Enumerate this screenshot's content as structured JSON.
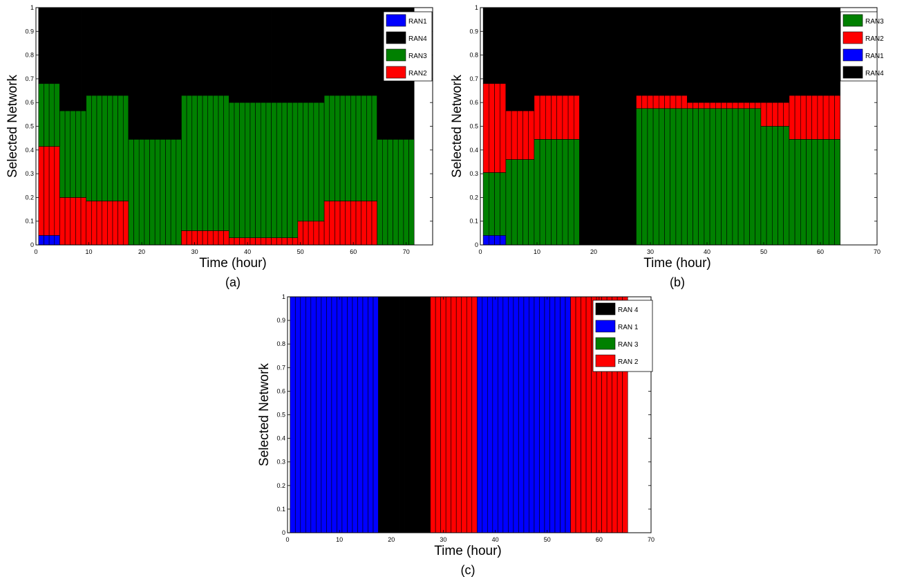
{
  "chart_data": [
    {
      "type": "bar",
      "stacked": true,
      "caption": "(a)",
      "xlabel": "Time (hour)",
      "ylabel": "Selected Network",
      "xlim": [
        0,
        75
      ],
      "ylim": [
        0,
        1
      ],
      "xticks": [
        0,
        10,
        20,
        30,
        40,
        50,
        60,
        70
      ],
      "xtick_labels": [
        "0",
        "10",
        "20",
        "30",
        "40",
        "50",
        "60",
        "70"
      ],
      "yticks": [
        0,
        0.1,
        0.2,
        0.3,
        0.4,
        0.5,
        0.6,
        0.7,
        0.8,
        0.9,
        1
      ],
      "ytick_labels": [
        "0",
        "0.1",
        "0.2",
        "0.3",
        "0.4",
        "0.5",
        "0.6",
        "0.7",
        "0.8",
        "0.9",
        "1"
      ],
      "bar_count": 71,
      "legend_position": "top-right",
      "legend": [
        "RAN1",
        "RAN4",
        "RAN3",
        "RAN2"
      ],
      "stack_order": [
        "RAN1",
        "RAN2",
        "RAN3",
        "RAN4"
      ],
      "colors": {
        "RAN1": "#0000ff",
        "RAN2": "#ff0000",
        "RAN3": "#008000",
        "RAN4": "#000000"
      },
      "segments": [
        {
          "x_start": 1,
          "x_end": 4,
          "values": {
            "RAN1": 0.04,
            "RAN2": 0.375,
            "RAN3": 0.265,
            "RAN4": 0.32
          }
        },
        {
          "x_start": 5,
          "x_end": 9,
          "values": {
            "RAN1": 0,
            "RAN2": 0.2,
            "RAN3": 0.365,
            "RAN4": 0.435
          }
        },
        {
          "x_start": 10,
          "x_end": 17,
          "values": {
            "RAN1": 0,
            "RAN2": 0.185,
            "RAN3": 0.445,
            "RAN4": 0.37
          }
        },
        {
          "x_start": 18,
          "x_end": 27,
          "values": {
            "RAN1": 0,
            "RAN2": 0,
            "RAN3": 0.445,
            "RAN4": 0.555
          }
        },
        {
          "x_start": 28,
          "x_end": 36,
          "values": {
            "RAN1": 0,
            "RAN2": 0.06,
            "RAN3": 0.57,
            "RAN4": 0.37
          }
        },
        {
          "x_start": 37,
          "x_end": 49,
          "values": {
            "RAN1": 0,
            "RAN2": 0.03,
            "RAN3": 0.57,
            "RAN4": 0.4
          }
        },
        {
          "x_start": 50,
          "x_end": 54,
          "values": {
            "RAN1": 0,
            "RAN2": 0.1,
            "RAN3": 0.5,
            "RAN4": 0.4
          }
        },
        {
          "x_start": 55,
          "x_end": 64,
          "values": {
            "RAN1": 0,
            "RAN2": 0.185,
            "RAN3": 0.445,
            "RAN4": 0.37
          }
        },
        {
          "x_start": 65,
          "x_end": 71,
          "values": {
            "RAN1": 0,
            "RAN2": 0,
            "RAN3": 0.445,
            "RAN4": 0.555
          }
        }
      ]
    },
    {
      "type": "bar",
      "stacked": true,
      "caption": "(b)",
      "xlabel": "Time (hour)",
      "ylabel": "Selected Network",
      "xlim": [
        0,
        70
      ],
      "ylim": [
        0,
        1
      ],
      "xticks": [
        0,
        10,
        20,
        30,
        40,
        50,
        60,
        70
      ],
      "xtick_labels": [
        "0",
        "10",
        "20",
        "30",
        "40",
        "50",
        "60",
        "70"
      ],
      "yticks": [
        0,
        0.1,
        0.2,
        0.3,
        0.4,
        0.5,
        0.6,
        0.7,
        0.8,
        0.9,
        1
      ],
      "ytick_labels": [
        "0",
        "0.1",
        "0.2",
        "0.3",
        "0.4",
        "0.5",
        "0.6",
        "0.7",
        "0.8",
        "0.9",
        "1"
      ],
      "bar_count": 63,
      "legend_position": "top-right",
      "legend": [
        "RAN3",
        "RAN2",
        "RAN1",
        "RAN4"
      ],
      "stack_order": [
        "RAN1",
        "RAN3",
        "RAN2",
        "RAN4"
      ],
      "colors": {
        "RAN1": "#0000ff",
        "RAN2": "#ff0000",
        "RAN3": "#008000",
        "RAN4": "#000000"
      },
      "segments": [
        {
          "x_start": 1,
          "x_end": 4,
          "values": {
            "RAN1": 0.04,
            "RAN3": 0.265,
            "RAN2": 0.375,
            "RAN4": 0.32
          }
        },
        {
          "x_start": 5,
          "x_end": 9,
          "values": {
            "RAN1": 0,
            "RAN3": 0.36,
            "RAN2": 0.205,
            "RAN4": 0.435
          }
        },
        {
          "x_start": 10,
          "x_end": 17,
          "values": {
            "RAN1": 0,
            "RAN3": 0.445,
            "RAN2": 0.185,
            "RAN4": 0.37
          }
        },
        {
          "x_start": 18,
          "x_end": 27,
          "values": {
            "RAN1": 0,
            "RAN3": 0,
            "RAN2": 0,
            "RAN4": 1
          }
        },
        {
          "x_start": 28,
          "x_end": 36,
          "values": {
            "RAN1": 0,
            "RAN3": 0.575,
            "RAN2": 0.055,
            "RAN4": 0.37
          }
        },
        {
          "x_start": 37,
          "x_end": 49,
          "values": {
            "RAN1": 0,
            "RAN3": 0.575,
            "RAN2": 0.025,
            "RAN4": 0.4
          }
        },
        {
          "x_start": 50,
          "x_end": 54,
          "values": {
            "RAN1": 0,
            "RAN3": 0.5,
            "RAN2": 0.1,
            "RAN4": 0.4
          }
        },
        {
          "x_start": 55,
          "x_end": 63,
          "values": {
            "RAN1": 0,
            "RAN3": 0.445,
            "RAN2": 0.185,
            "RAN4": 0.37
          }
        }
      ]
    },
    {
      "type": "bar",
      "stacked": true,
      "caption": "(c)",
      "xlabel": "Time (hour)",
      "ylabel": "Selected Network",
      "xlim": [
        0,
        70
      ],
      "ylim": [
        0,
        1
      ],
      "xticks": [
        0,
        10,
        20,
        30,
        40,
        50,
        60,
        70
      ],
      "xtick_labels": [
        "0",
        "10",
        "20",
        "30",
        "40",
        "50",
        "60",
        "70"
      ],
      "yticks": [
        0,
        0.1,
        0.2,
        0.3,
        0.4,
        0.5,
        0.6,
        0.7,
        0.8,
        0.9,
        1
      ],
      "ytick_labels": [
        "0",
        "0.1",
        "0.2",
        "0.3",
        "0.4",
        "0.5",
        "0.6",
        "0.7",
        "0.8",
        "0.9",
        "1"
      ],
      "bar_count": 65,
      "legend_position": "top-right",
      "legend": [
        "RAN 4",
        "RAN 1",
        "RAN 3",
        "RAN 2"
      ],
      "stack_order": [
        "RAN 1",
        "RAN 2",
        "RAN 3",
        "RAN 4"
      ],
      "colors": {
        "RAN 1": "#0000ff",
        "RAN 2": "#ff0000",
        "RAN 3": "#008000",
        "RAN 4": "#000000"
      },
      "segments": [
        {
          "x_start": 1,
          "x_end": 17,
          "values": {
            "RAN 1": 1,
            "RAN 2": 0,
            "RAN 3": 0,
            "RAN 4": 0
          }
        },
        {
          "x_start": 18,
          "x_end": 27,
          "values": {
            "RAN 1": 0,
            "RAN 2": 0,
            "RAN 3": 0,
            "RAN 4": 1
          }
        },
        {
          "x_start": 28,
          "x_end": 36,
          "values": {
            "RAN 1": 0,
            "RAN 2": 1,
            "RAN 3": 0,
            "RAN 4": 0
          }
        },
        {
          "x_start": 37,
          "x_end": 54,
          "values": {
            "RAN 1": 1,
            "RAN 2": 0,
            "RAN 3": 0,
            "RAN 4": 0
          }
        },
        {
          "x_start": 55,
          "x_end": 65,
          "values": {
            "RAN 1": 0,
            "RAN 2": 1,
            "RAN 3": 0,
            "RAN 4": 0
          }
        }
      ]
    }
  ]
}
